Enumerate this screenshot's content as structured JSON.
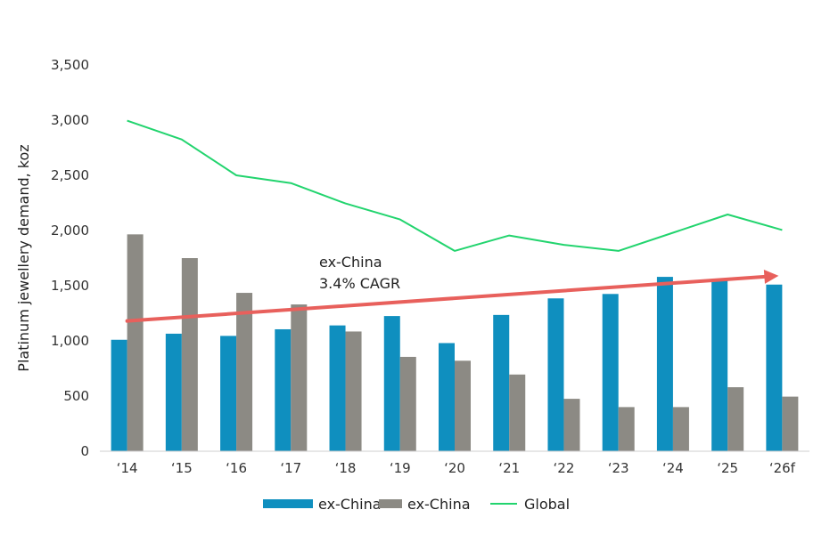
{
  "chart_data": {
    "type": "bar",
    "ylabel": "Platinum jewellery demand, koz",
    "ylim": [
      0,
      3500
    ],
    "yticks": [
      0,
      500,
      1000,
      1500,
      2000,
      2500,
      3000,
      3500
    ],
    "ytick_labels": [
      "0",
      "500",
      "1,000",
      "1,500",
      "2,000",
      "2,500",
      "3,000",
      "3,500"
    ],
    "categories": [
      "‘14",
      "‘15",
      "‘16",
      "‘17",
      "‘18",
      "‘19",
      "‘20",
      "‘21",
      "‘22",
      "‘23",
      "‘24",
      "‘25",
      "‘26f"
    ],
    "series": [
      {
        "name": "ex-China",
        "kind": "bar",
        "color": "#0f8fbf",
        "values": [
          1010,
          1065,
          1045,
          1105,
          1140,
          1225,
          980,
          1235,
          1385,
          1425,
          1580,
          1560,
          1510
        ]
      },
      {
        "name": "ex-China",
        "kind": "bar",
        "color": "#8c8a84",
        "values": [
          1965,
          1750,
          1435,
          1330,
          1085,
          855,
          820,
          695,
          475,
          400,
          400,
          580,
          495
        ]
      },
      {
        "name": "Global",
        "kind": "line",
        "color": "#22d46e",
        "values": [
          2995,
          2825,
          2500,
          2430,
          2245,
          2100,
          1815,
          1955,
          1870,
          1815,
          1980,
          2145,
          2005
        ]
      }
    ],
    "trend": {
      "label_line1": "ex-China",
      "label_line2": "3.4% CAGR",
      "color": "#e8605c",
      "from_value": 1180,
      "to_value": 1590
    },
    "legend": {
      "placement": "bottom-center"
    }
  }
}
